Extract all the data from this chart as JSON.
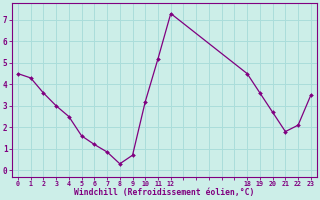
{
  "x": [
    0,
    1,
    2,
    3,
    4,
    5,
    6,
    7,
    8,
    9,
    10,
    11,
    12,
    18,
    19,
    20,
    21,
    22,
    23
  ],
  "y": [
    4.5,
    4.3,
    3.6,
    3.0,
    2.5,
    1.6,
    1.2,
    0.85,
    0.3,
    0.7,
    3.2,
    5.2,
    7.3,
    4.5,
    3.6,
    2.7,
    1.8,
    2.1,
    3.5
  ],
  "line_color": "#800080",
  "marker_color": "#800080",
  "bg_color": "#cceee8",
  "grid_color": "#aaddda",
  "xlabel": "Windchill (Refroidissement éolien,°C)",
  "xlabel_color": "#800080",
  "xtick_labels": [
    "0",
    "1",
    "2",
    "3",
    "4",
    "5",
    "6",
    "7",
    "8",
    "9",
    "10",
    "11",
    "12",
    "",
    "",
    "",
    "",
    "",
    "18",
    "19",
    "20",
    "21",
    "22",
    "23"
  ],
  "xtick_positions": [
    0,
    1,
    2,
    3,
    4,
    5,
    6,
    7,
    8,
    9,
    10,
    11,
    12,
    13,
    14,
    15,
    16,
    17,
    18,
    19,
    20,
    21,
    22,
    23
  ],
  "yticks": [
    0,
    1,
    2,
    3,
    4,
    5,
    6,
    7
  ],
  "ylim": [
    -0.3,
    7.8
  ],
  "xlim": [
    -0.5,
    23.5
  ],
  "tick_color": "#800080",
  "border_color": "#800080",
  "figsize": [
    3.2,
    2.0
  ],
  "dpi": 100
}
